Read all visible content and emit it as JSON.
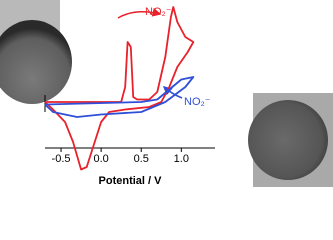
{
  "chart_data": {
    "type": "line",
    "xlabel": "Potential / V",
    "xlim": [
      -0.7,
      1.42
    ],
    "xticks": [
      -0.5,
      {
        "value": 0,
        "label": "0.0"
      },
      0.5,
      {
        "value": 1,
        "label": "1.0"
      }
    ],
    "ylim": [
      -1.5,
      2.1
    ],
    "annotations": [
      {
        "text": "NO₂⁻",
        "color": "#e8212b"
      },
      {
        "text": "NO₂⁻",
        "color": "#2f4fd8"
      }
    ],
    "series": [
      {
        "color": "#e8212b",
        "x": [
          -0.7,
          -0.3,
          0.0,
          0.25,
          0.3,
          0.33,
          0.37,
          0.4,
          0.45,
          0.6,
          0.7,
          0.8,
          0.87,
          0.9,
          0.95,
          1.05,
          1.15,
          1.08,
          0.95,
          0.85,
          0.75,
          0.6,
          0.3,
          0.1,
          0.0,
          -0.1,
          -0.18,
          -0.25,
          -0.35,
          -0.45,
          -0.6,
          -0.7
        ],
        "values": [
          0.1,
          0.1,
          0.1,
          0.1,
          0.4,
          1.3,
          1.2,
          0.2,
          0.15,
          0.15,
          0.3,
          1.0,
          1.8,
          2.0,
          1.7,
          1.4,
          1.3,
          1.1,
          0.8,
          0.4,
          0.1,
          0.0,
          -0.05,
          -0.1,
          -0.3,
          -0.8,
          -1.2,
          -1.25,
          -0.7,
          -0.3,
          -0.05,
          0.1
        ]
      },
      {
        "color": "#2f4fd8",
        "x": [
          -0.7,
          0.5,
          0.7,
          0.85,
          1.0,
          1.15,
          1.05,
          0.8,
          0.5,
          0.0,
          -0.3,
          -0.6,
          -0.7
        ],
        "values": [
          0.05,
          0.1,
          0.15,
          0.35,
          0.55,
          0.6,
          0.4,
          0.1,
          -0.1,
          -0.15,
          -0.2,
          -0.1,
          0.05
        ]
      }
    ]
  }
}
